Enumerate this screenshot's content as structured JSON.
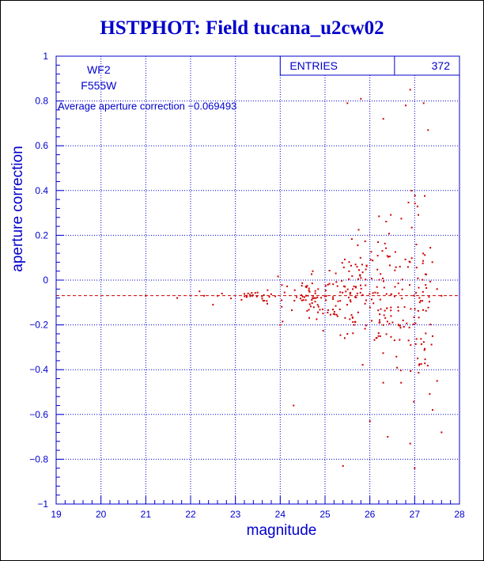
{
  "chart_data": {
    "type": "scatter",
    "title": "HSTPHOT: Field tucana_u2cw02",
    "xlabel": "magnitude",
    "ylabel": "aperture correction",
    "xlim": [
      19,
      28
    ],
    "ylim": [
      -1,
      1
    ],
    "xticks": [
      19,
      20,
      21,
      22,
      23,
      24,
      25,
      26,
      27,
      28
    ],
    "yticks": [
      -1,
      -0.8,
      -0.6,
      -0.4,
      -0.2,
      0,
      0.2,
      0.4,
      0.6,
      0.8,
      1
    ],
    "grid": true,
    "stats_box": {
      "label": "ENTRIES",
      "value": "372"
    },
    "info_lines": [
      "WF2",
      "F555W"
    ],
    "annotation": "Average aperture correction −0.069493",
    "average_line": -0.069493,
    "point_color": "#cc0000",
    "axis_color": "#0000cc",
    "point_count_drawn": 372
  }
}
